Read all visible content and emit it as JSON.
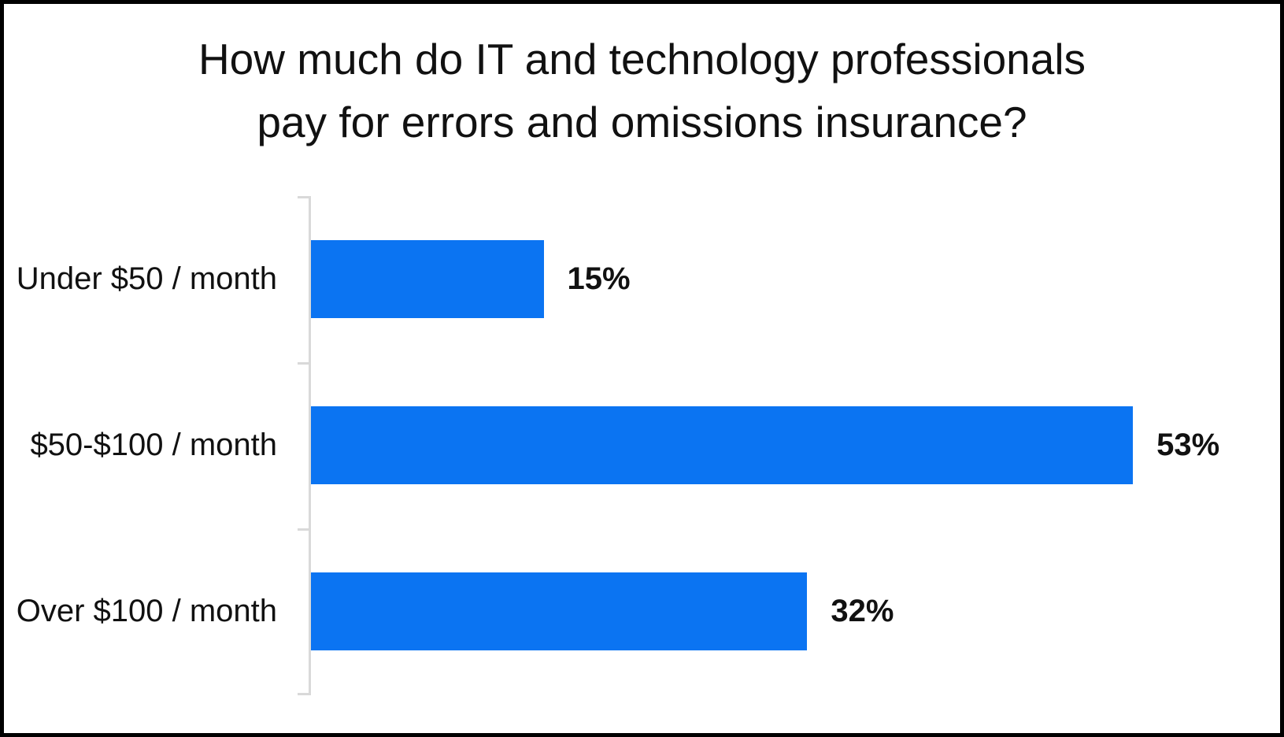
{
  "chart_data": {
    "type": "bar",
    "orientation": "horizontal",
    "title": "How much do IT and technology professionals pay for errors and omissions insurance?",
    "title_lines": [
      "How much do IT and technology professionals",
      "pay for errors and omissions insurance?"
    ],
    "categories": [
      "Under $50 / month",
      "$50-$100 / month",
      "Over $100 / month"
    ],
    "values": [
      15,
      53,
      32
    ],
    "value_labels": [
      "15%",
      "53%",
      "32%"
    ],
    "xlim": [
      0,
      60
    ],
    "grid": false,
    "legend": false,
    "colors": {
      "bar": "#0b74f2",
      "axis": "#d9d9d9",
      "text": "#111111",
      "frame_border": "#000000",
      "background": "#ffffff"
    }
  }
}
